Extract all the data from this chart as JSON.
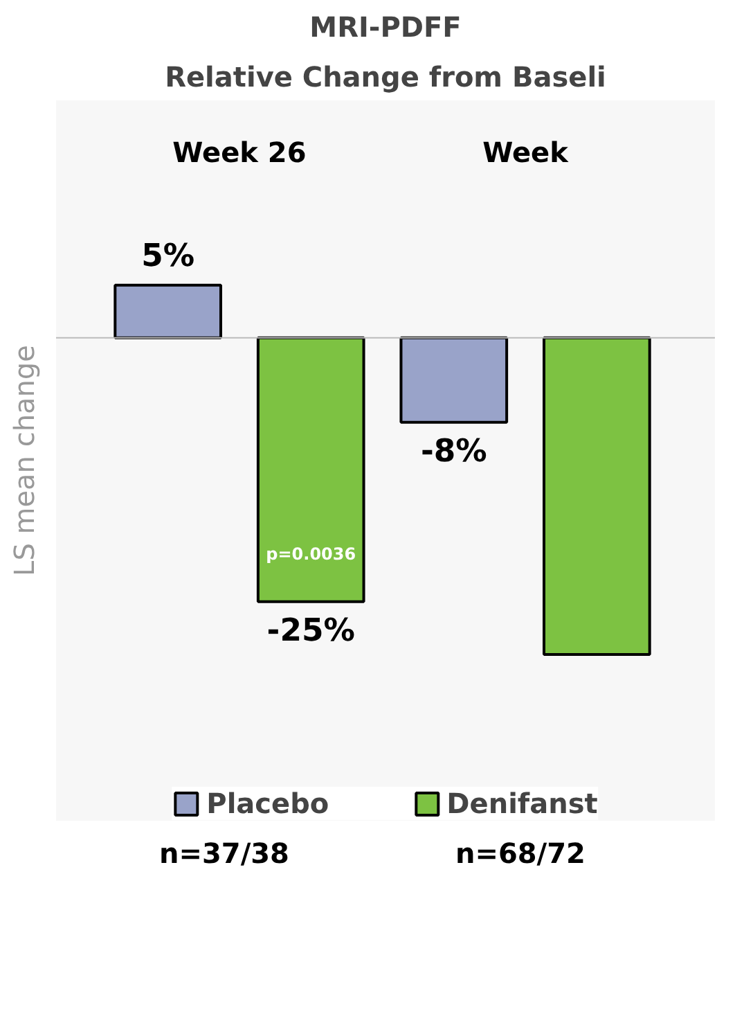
{
  "chart_data": {
    "type": "bar",
    "title": "MRI-PDFF",
    "subtitle": "Relative Change from Baseli",
    "ylabel": "LS mean change",
    "categories": [
      "Week 26",
      "Week"
    ],
    "series": [
      {
        "name": "Placebo",
        "color": "#99a3c9",
        "values": [
          5,
          -8
        ],
        "value_labels": [
          "5%",
          "-8%"
        ]
      },
      {
        "name": "Denifanst",
        "color": "#7dc242",
        "values": [
          -25,
          -30
        ],
        "value_labels": [
          "-25%",
          null
        ]
      }
    ],
    "annotations": [
      "p=0.0036",
      "n=37/38",
      "n=68/72"
    ],
    "legend": "bottom",
    "tick_labels": false
  }
}
